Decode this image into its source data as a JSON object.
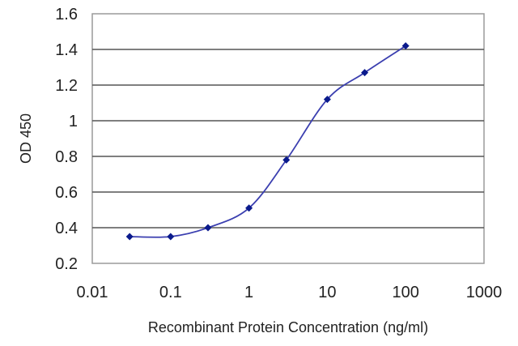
{
  "chart_data": {
    "type": "line",
    "xlabel": "Recombinant Protein Concentration (ng/ml)",
    "ylabel": "OD 450",
    "xscale": "log",
    "xlim": [
      0.01,
      1000
    ],
    "ylim": [
      0.2,
      1.6
    ],
    "grid": "horizontal",
    "x_ticks": [
      0.01,
      0.1,
      1,
      10,
      100,
      1000
    ],
    "x_tick_labels": [
      "0.01",
      "0.1",
      "1",
      "10",
      "100",
      "1000"
    ],
    "y_ticks": [
      0.2,
      0.4,
      0.6,
      0.8,
      1.0,
      1.2,
      1.4,
      1.6
    ],
    "y_tick_labels": [
      "0.2",
      "0.4",
      "0.6",
      "0.8",
      "1",
      "1.2",
      "1.4",
      "1.6"
    ],
    "series": [
      {
        "x": [
          0.03,
          0.1,
          0.3,
          1,
          3,
          10,
          30,
          100
        ],
        "y": [
          0.35,
          0.35,
          0.4,
          0.51,
          0.78,
          1.12,
          1.27,
          1.42
        ]
      }
    ],
    "colors": {
      "line": "#3b3fb0",
      "marker": "#0a1a8c",
      "grid": "#555555",
      "frame": "#9a9a9a",
      "plot_bg": "#ffffff"
    }
  }
}
